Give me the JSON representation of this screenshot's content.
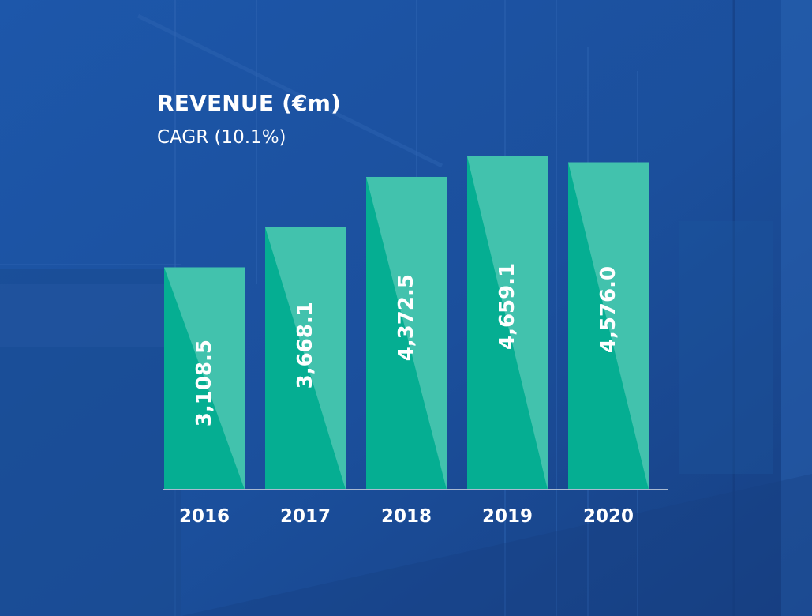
{
  "colors": {
    "background": "#1b4f9c",
    "bar": "#05ae92",
    "bar_highlight": "#4ec6b1",
    "axis": "#a9b9d2",
    "text": "#ffffff"
  },
  "chart_data": {
    "type": "bar",
    "title": "REVENUE (€m)",
    "subtitle": "CAGR (10.1%)",
    "xlabel": "",
    "ylabel": "",
    "categories": [
      "2016",
      "2017",
      "2018",
      "2019",
      "2020"
    ],
    "values": [
      3108.5,
      3668.1,
      4372.5,
      4659.1,
      4576.0
    ],
    "value_labels": [
      "3,108.5",
      "3,668.1",
      "4,372.5",
      "4,659.1",
      "4,576.0"
    ],
    "ylim": [
      0,
      4659.1
    ],
    "grid": false,
    "legend": "none",
    "value_label_orientation": "vertical"
  }
}
